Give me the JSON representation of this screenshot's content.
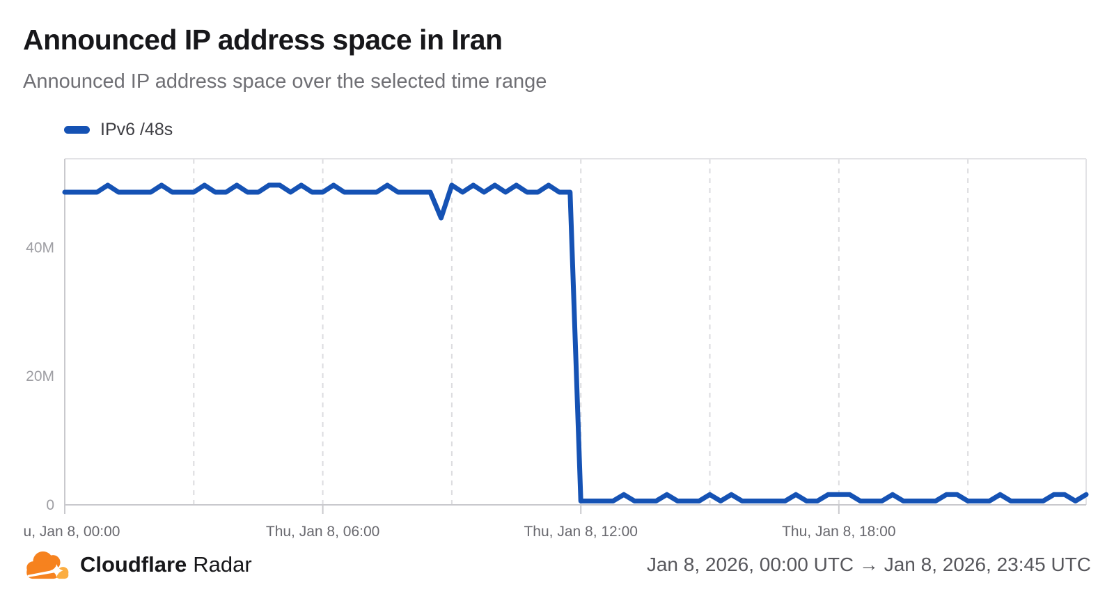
{
  "page": {
    "title": "Announced IP address space in Iran",
    "subtitle": "Announced IP address space over the selected time range"
  },
  "legend": {
    "series_label": "IPv6 /48s",
    "marker_color": "#1552B4"
  },
  "footer": {
    "brand_bold": "Cloudflare",
    "brand_regular": "Radar",
    "date_range": "Jan 8, 2026, 00:00 UTC → Jan 8, 2026, 23:45 UTC",
    "logo_colors": {
      "cloud_main": "#F6821F",
      "cloud_light": "#FBAD41",
      "flare": "#FFFFFF"
    }
  },
  "chart_data": {
    "type": "line",
    "title": "Announced IP address space in Iran",
    "ylabel": "",
    "xlabel": "",
    "unit": "millions of announced IPv6 /48s",
    "series": [
      {
        "name": "IPv6 /48s",
        "color": "#1552B4",
        "x_start": "Thu, Jan 8, 00:00",
        "x_end": "Thu, Jan 8, 23:45",
        "x_interval_minutes": 15,
        "values_millions": [
          48.6,
          48.6,
          48.6,
          48.6,
          49.7,
          48.6,
          48.6,
          48.6,
          48.6,
          49.7,
          48.6,
          48.6,
          48.6,
          49.7,
          48.6,
          48.6,
          49.7,
          48.6,
          48.6,
          49.7,
          49.7,
          48.6,
          49.7,
          48.6,
          48.6,
          49.7,
          48.6,
          48.6,
          48.6,
          48.6,
          49.7,
          48.6,
          48.6,
          48.6,
          48.6,
          44.6,
          49.7,
          48.6,
          49.7,
          48.6,
          49.7,
          48.6,
          49.7,
          48.6,
          48.6,
          49.7,
          48.6,
          48.6,
          0.6,
          0.6,
          0.6,
          0.6,
          1.6,
          0.6,
          0.6,
          0.6,
          1.6,
          0.6,
          0.6,
          0.6,
          1.6,
          0.6,
          1.6,
          0.6,
          0.6,
          0.6,
          0.6,
          0.6,
          1.6,
          0.6,
          0.6,
          1.6,
          1.6,
          1.6,
          0.6,
          0.6,
          0.6,
          1.6,
          0.6,
          0.6,
          0.6,
          0.6,
          1.6,
          1.6,
          0.6,
          0.6,
          0.6,
          1.6,
          0.6,
          0.6,
          0.6,
          0.6,
          1.6,
          1.6,
          0.6,
          1.6
        ]
      }
    ],
    "xlim_hours": [
      0,
      23.75
    ],
    "ylim": [
      0,
      53.8
    ],
    "y_ticks": [
      {
        "value": 0,
        "label": "0"
      },
      {
        "value": 20,
        "label": "20M"
      },
      {
        "value": 40,
        "label": "40M"
      }
    ],
    "x_ticks": [
      {
        "hour": 0,
        "label": "u, Jan 8, 00:00"
      },
      {
        "hour": 6,
        "label": "Thu, Jan 8, 06:00"
      },
      {
        "hour": 12,
        "label": "Thu, Jan 8, 12:00"
      },
      {
        "hour": 18,
        "label": "Thu, Jan 8, 18:00"
      }
    ],
    "gridline_hours": [
      3,
      6,
      9,
      12,
      15,
      18,
      21
    ],
    "grid": "vertical-dashed",
    "legend_position": "top-left",
    "colors": {
      "gridline": "#dcdcdf",
      "plot_border": "#e3e3e6",
      "axis_line": "#c9c9cd",
      "y_tick_label": "#9e9ea3",
      "x_tick_label": "#68686e"
    }
  }
}
